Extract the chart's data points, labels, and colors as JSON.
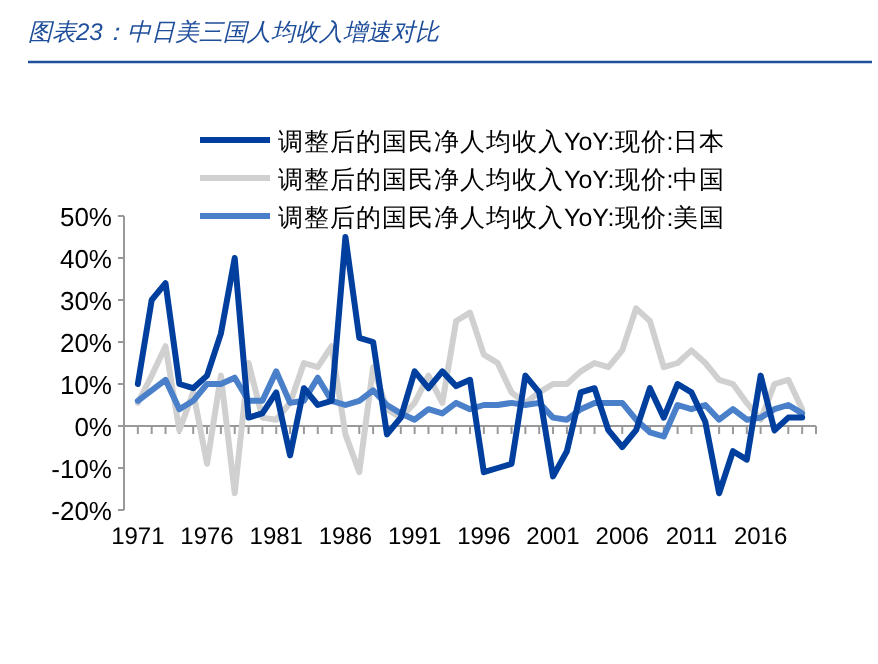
{
  "chart_data": {
    "type": "line",
    "title": "图表23：中日美三国人均收入增速对比",
    "x": [
      1971,
      1972,
      1973,
      1974,
      1975,
      1976,
      1977,
      1978,
      1979,
      1980,
      1981,
      1982,
      1983,
      1984,
      1985,
      1986,
      1987,
      1988,
      1989,
      1990,
      1991,
      1992,
      1993,
      1994,
      1995,
      1996,
      1997,
      1998,
      1999,
      2000,
      2001,
      2002,
      2003,
      2004,
      2005,
      2006,
      2007,
      2008,
      2009,
      2010,
      2011,
      2012,
      2013,
      2014,
      2015,
      2016,
      2017,
      2018,
      2019
    ],
    "series": [
      {
        "name": "调整后的国民净人均收入YoY:现价:日本",
        "color": "#003f9e",
        "values": [
          10,
          30,
          34,
          10,
          9,
          12,
          22,
          40,
          2,
          3,
          8,
          -7,
          9,
          5,
          6,
          45,
          21,
          20,
          -2,
          2,
          13,
          9,
          13,
          9.5,
          11,
          -11,
          -10,
          -9,
          12,
          8,
          -12,
          -6,
          8,
          9,
          -1,
          -5,
          -1,
          9,
          2,
          10,
          8,
          1,
          -16,
          -6,
          -8,
          12,
          -1,
          2,
          2
        ]
      },
      {
        "name": "调整后的国民净人均收入YoY:现价:中国",
        "color": "#d0d0d0",
        "values": [
          5.5,
          12,
          19,
          -1,
          8,
          -9,
          12,
          -16,
          15,
          2,
          1.5,
          5.5,
          15,
          14,
          19,
          -2,
          -11,
          14,
          4,
          2,
          5.5,
          12,
          5.5,
          25,
          27,
          17,
          15,
          8,
          5.5,
          8,
          10,
          10,
          13,
          15,
          14,
          18,
          28,
          25,
          14,
          15,
          18,
          15,
          11,
          10,
          5.5,
          1.5,
          10,
          11,
          4
        ]
      },
      {
        "name": "调整后的国民净人均收入YoY:现价:美国",
        "color": "#4a7fc9",
        "values": [
          6,
          8.5,
          11,
          4,
          6,
          10,
          10,
          11.5,
          6,
          6,
          13,
          5.5,
          6,
          11.5,
          6,
          5,
          6,
          8.5,
          5,
          3,
          1.5,
          4,
          3,
          5.5,
          4,
          5,
          5,
          5.5,
          5,
          5.5,
          2,
          1.5,
          4,
          5.5,
          5.5,
          5.5,
          1.5,
          -1.5,
          -2.5,
          5,
          4,
          5,
          1.5,
          4,
          1.5,
          2,
          4,
          5,
          3
        ]
      }
    ],
    "xlim": [
      1970,
      2020
    ],
    "xticks": [
      1971,
      1976,
      1981,
      1986,
      1991,
      1996,
      2001,
      2006,
      2011,
      2016
    ],
    "ylim": [
      -20,
      50
    ],
    "yticks": [
      {
        "value": -20,
        "label": "-20%"
      },
      {
        "value": -10,
        "label": "-10%"
      },
      {
        "value": 0,
        "label": "0%"
      },
      {
        "value": 10,
        "label": "10%"
      },
      {
        "value": 20,
        "label": "20%"
      },
      {
        "value": 30,
        "label": "30%"
      },
      {
        "value": 40,
        "label": "40%"
      },
      {
        "value": 50,
        "label": "50%"
      }
    ],
    "legend": "top",
    "marker": "none",
    "line_style": "solid"
  }
}
